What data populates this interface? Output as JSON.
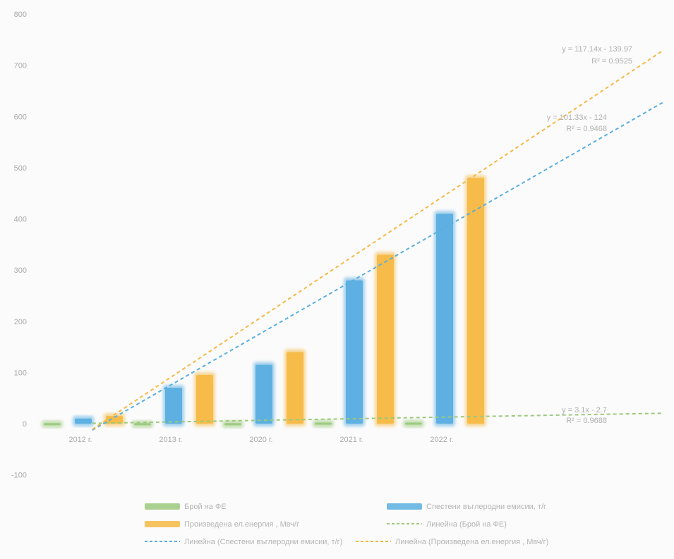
{
  "chart_data": {
    "type": "bar",
    "categories": [
      "2012 г.",
      "2013 г.",
      "2020 г.",
      "2021 г.",
      "2022 г."
    ],
    "ylim": [
      -100,
      800
    ],
    "yticks": [
      -100,
      0,
      100,
      200,
      300,
      400,
      500,
      600,
      700,
      800
    ],
    "grid": false,
    "legend_position": "bottom",
    "series": [
      {
        "name": "Брой на ФЕ",
        "color": "#9cc97d",
        "values": [
          1,
          1,
          1,
          2,
          2
        ]
      },
      {
        "name": "Спестени въглеродни емисии, т/г",
        "color": "#5aaee0",
        "values": [
          10,
          70,
          115,
          280,
          410
        ]
      },
      {
        "name": "Произведена ел.енергия , Мвч/г",
        "color": "#f5b944",
        "values": [
          15,
          95,
          140,
          330,
          480
        ]
      }
    ],
    "trendlines": [
      {
        "name": "Линейна (Брой на ФЕ)",
        "series": "Брой на ФЕ",
        "color": "#9cc97d",
        "slope": 3.1,
        "intercept": -2.7,
        "equation": "y = 3.1x - 2.7",
        "r2": "R² = 0.9688"
      },
      {
        "name": "Линейна (Спестени въглеродни емисии, т/г)",
        "series": "Спестени въглеродни емисии, т/г",
        "color": "#5aaee0",
        "slope": 101.33,
        "intercept": -124,
        "equation": "y = 101.33x - 124",
        "r2": "R² = 0.9468"
      },
      {
        "name": "Линейна (Произведена ел.енергия , Мвч/г)",
        "series": "Произведена ел.енергия , Мвч/г",
        "color": "#f5b944",
        "slope": 117.14,
        "intercept": -139.97,
        "equation": "y = 117.14x - 139.97",
        "r2": "R² = 0.9525"
      }
    ]
  }
}
